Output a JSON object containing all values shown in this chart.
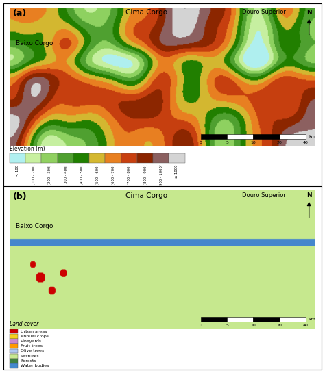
{
  "elevation_label": "Elevation (m)",
  "elevation_colors": [
    "#b0f0f0",
    "#c8f0a0",
    "#90d060",
    "#50a030",
    "#208000",
    "#d4b830",
    "#e88020",
    "#c84010",
    "#8b2500",
    "#8b6060",
    "#d4d4d4"
  ],
  "elevation_labels": [
    "< 100",
    "[100 - 200[",
    "[200 - 300[",
    "[300 - 400[",
    "[400 - 500[",
    "[500 - 600[",
    "[600 - 700[",
    "[700 - 800[",
    "[800 - 900[",
    "[900 - 1000[",
    "≥ 1000"
  ],
  "landcover_label": "Land cover",
  "landcover_colors": [
    "#cc0000",
    "#f5d020",
    "#cc88cc",
    "#ff9900",
    "#b0c8f0",
    "#c8e890",
    "#408040",
    "#4488cc"
  ],
  "landcover_labels": [
    "Urban areas",
    "Annual crops",
    "Vineyards",
    "Fruit trees",
    "Olive trees",
    "Pastures",
    "Forests",
    "Water bodies"
  ],
  "panel_a_label": "(a)",
  "panel_b_label": "(b)",
  "cima_corgo": "Cima Corgo",
  "douro_superior": "Douro Superior",
  "baixo_corgo": "Baixo Corgo",
  "north": "N",
  "scale_labels": [
    "0",
    "5",
    "10",
    "20",
    "40"
  ],
  "scale_unit": "km",
  "fig_bg": "#ffffff"
}
